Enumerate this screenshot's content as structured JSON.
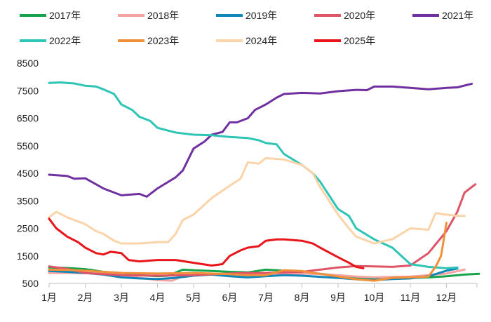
{
  "chart_data": {
    "type": "line",
    "title": "",
    "xlabel": "",
    "ylabel": "",
    "ylim": [
      500,
      8500
    ],
    "yticks": [
      500,
      1500,
      2500,
      3500,
      4500,
      5500,
      6500,
      7500,
      8500
    ],
    "ytick_labels": [
      "500",
      "1500",
      "2500",
      "3500",
      "4500",
      "5500",
      "6500",
      "7500",
      "8500"
    ],
    "xlim": [
      1,
      13
    ],
    "xticks": [
      1,
      2,
      3,
      4,
      5,
      6,
      7,
      8,
      9,
      10,
      11,
      12
    ],
    "xtick_labels": [
      "1月",
      "2月",
      "3月",
      "4月",
      "5月",
      "6月",
      "7月",
      "8月",
      "9月",
      "10月",
      "11月",
      "12月"
    ],
    "grid": false,
    "legend_position": "top",
    "series": [
      {
        "name": "2017年",
        "color": "#16a34a",
        "points": [
          [
            1.0,
            1080
          ],
          [
            1.5,
            1060
          ],
          [
            2.0,
            1020
          ],
          [
            2.5,
            920
          ],
          [
            3.0,
            880
          ],
          [
            3.5,
            800
          ],
          [
            4.0,
            760
          ],
          [
            4.3,
            780
          ],
          [
            4.7,
            1000
          ],
          [
            5.0,
            980
          ],
          [
            5.5,
            950
          ],
          [
            6.0,
            920
          ],
          [
            6.5,
            900
          ],
          [
            7.0,
            1000
          ],
          [
            7.5,
            960
          ],
          [
            8.0,
            900
          ],
          [
            8.5,
            850
          ],
          [
            9.0,
            780
          ],
          [
            9.5,
            720
          ],
          [
            10.0,
            680
          ],
          [
            10.5,
            720
          ],
          [
            11.0,
            700
          ],
          [
            11.5,
            720
          ],
          [
            12.0,
            760
          ],
          [
            12.5,
            820
          ],
          [
            12.9,
            850
          ]
        ]
      },
      {
        "name": "2018年",
        "color": "#f4a3a3",
        "points": [
          [
            1.0,
            880
          ],
          [
            1.5,
            880
          ],
          [
            2.0,
            870
          ],
          [
            2.5,
            860
          ],
          [
            3.0,
            820
          ],
          [
            3.5,
            700
          ],
          [
            4.0,
            620
          ],
          [
            4.4,
            600
          ],
          [
            4.7,
            760
          ],
          [
            5.0,
            800
          ],
          [
            5.5,
            820
          ],
          [
            6.0,
            820
          ],
          [
            6.5,
            830
          ],
          [
            7.0,
            840
          ],
          [
            7.5,
            850
          ],
          [
            8.0,
            860
          ],
          [
            8.5,
            840
          ],
          [
            9.0,
            800
          ],
          [
            9.5,
            750
          ],
          [
            10.0,
            720
          ],
          [
            10.5,
            740
          ],
          [
            11.0,
            750
          ],
          [
            11.5,
            800
          ],
          [
            12.0,
            860
          ],
          [
            12.5,
            1000
          ]
        ]
      },
      {
        "name": "2019年",
        "color": "#0e86b8",
        "points": [
          [
            1.0,
            950
          ],
          [
            1.5,
            920
          ],
          [
            2.0,
            880
          ],
          [
            2.5,
            820
          ],
          [
            3.0,
            720
          ],
          [
            3.5,
            680
          ],
          [
            4.0,
            660
          ],
          [
            4.5,
            700
          ],
          [
            5.0,
            780
          ],
          [
            5.5,
            820
          ],
          [
            6.0,
            760
          ],
          [
            6.5,
            720
          ],
          [
            7.0,
            760
          ],
          [
            7.5,
            800
          ],
          [
            8.0,
            780
          ],
          [
            8.5,
            740
          ],
          [
            9.0,
            700
          ],
          [
            9.5,
            650
          ],
          [
            10.0,
            620
          ],
          [
            10.5,
            660
          ],
          [
            11.0,
            680
          ],
          [
            11.5,
            760
          ],
          [
            12.0,
            960
          ],
          [
            12.3,
            1040
          ]
        ]
      },
      {
        "name": "2020年",
        "color": "#e05468",
        "points": [
          [
            1.0,
            1120
          ],
          [
            1.5,
            1030
          ],
          [
            2.0,
            880
          ],
          [
            2.5,
            840
          ],
          [
            3.0,
            800
          ],
          [
            3.5,
            790
          ],
          [
            4.0,
            780
          ],
          [
            4.5,
            790
          ],
          [
            5.0,
            800
          ],
          [
            5.5,
            830
          ],
          [
            6.0,
            860
          ],
          [
            6.5,
            880
          ],
          [
            7.0,
            880
          ],
          [
            7.5,
            900
          ],
          [
            8.0,
            920
          ],
          [
            8.5,
            1000
          ],
          [
            9.0,
            1080
          ],
          [
            9.5,
            1130
          ],
          [
            10.0,
            1120
          ],
          [
            10.5,
            1100
          ],
          [
            11.0,
            1150
          ],
          [
            11.5,
            1600
          ],
          [
            12.0,
            2400
          ],
          [
            12.3,
            3100
          ],
          [
            12.5,
            3800
          ],
          [
            12.8,
            4100
          ]
        ]
      },
      {
        "name": "2021年",
        "color": "#7030a0",
        "points": [
          [
            1.0,
            4450
          ],
          [
            1.5,
            4400
          ],
          [
            1.7,
            4300
          ],
          [
            2.0,
            4320
          ],
          [
            2.3,
            4100
          ],
          [
            2.5,
            3950
          ],
          [
            3.0,
            3700
          ],
          [
            3.5,
            3750
          ],
          [
            3.7,
            3650
          ],
          [
            4.0,
            3950
          ],
          [
            4.5,
            4350
          ],
          [
            4.7,
            4600
          ],
          [
            5.0,
            5400
          ],
          [
            5.3,
            5650
          ],
          [
            5.5,
            5900
          ],
          [
            5.8,
            6000
          ],
          [
            6.0,
            6350
          ],
          [
            6.2,
            6350
          ],
          [
            6.5,
            6500
          ],
          [
            6.7,
            6800
          ],
          [
            7.0,
            7000
          ],
          [
            7.3,
            7250
          ],
          [
            7.5,
            7380
          ],
          [
            8.0,
            7420
          ],
          [
            8.5,
            7400
          ],
          [
            9.0,
            7480
          ],
          [
            9.5,
            7530
          ],
          [
            9.8,
            7520
          ],
          [
            10.0,
            7650
          ],
          [
            10.5,
            7650
          ],
          [
            11.0,
            7600
          ],
          [
            11.5,
            7550
          ],
          [
            12.0,
            7600
          ],
          [
            12.3,
            7620
          ],
          [
            12.7,
            7750
          ]
        ]
      },
      {
        "name": "2022年",
        "color": "#2ec4b6",
        "points": [
          [
            1.0,
            7780
          ],
          [
            1.3,
            7800
          ],
          [
            1.7,
            7760
          ],
          [
            2.0,
            7680
          ],
          [
            2.3,
            7650
          ],
          [
            2.5,
            7550
          ],
          [
            2.8,
            7380
          ],
          [
            3.0,
            7000
          ],
          [
            3.3,
            6800
          ],
          [
            3.5,
            6550
          ],
          [
            3.8,
            6400
          ],
          [
            4.0,
            6150
          ],
          [
            4.5,
            5980
          ],
          [
            5.0,
            5900
          ],
          [
            5.5,
            5880
          ],
          [
            6.0,
            5820
          ],
          [
            6.5,
            5780
          ],
          [
            6.8,
            5700
          ],
          [
            7.0,
            5600
          ],
          [
            7.3,
            5550
          ],
          [
            7.5,
            5200
          ],
          [
            8.0,
            4800
          ],
          [
            8.3,
            4500
          ],
          [
            8.5,
            4200
          ],
          [
            9.0,
            3200
          ],
          [
            9.3,
            2950
          ],
          [
            9.5,
            2500
          ],
          [
            10.0,
            2100
          ],
          [
            10.5,
            1800
          ],
          [
            11.0,
            1200
          ],
          [
            11.5,
            1100
          ],
          [
            12.0,
            1050
          ],
          [
            12.3,
            1080
          ]
        ]
      },
      {
        "name": "2023年",
        "color": "#f0913a",
        "points": [
          [
            1.0,
            1000
          ],
          [
            1.5,
            990
          ],
          [
            2.0,
            960
          ],
          [
            2.5,
            920
          ],
          [
            3.0,
            880
          ],
          [
            3.5,
            870
          ],
          [
            4.0,
            860
          ],
          [
            4.5,
            870
          ],
          [
            5.0,
            880
          ],
          [
            5.5,
            860
          ],
          [
            6.0,
            840
          ],
          [
            6.5,
            800
          ],
          [
            7.0,
            800
          ],
          [
            7.5,
            980
          ],
          [
            8.0,
            950
          ],
          [
            8.5,
            850
          ],
          [
            9.0,
            750
          ],
          [
            9.5,
            650
          ],
          [
            10.0,
            600
          ],
          [
            10.5,
            700
          ],
          [
            11.0,
            720
          ],
          [
            11.5,
            750
          ],
          [
            11.7,
            1100
          ],
          [
            11.85,
            1500
          ],
          [
            12.0,
            2700
          ]
        ]
      },
      {
        "name": "2024年",
        "color": "#fbd3a8",
        "points": [
          [
            1.0,
            2900
          ],
          [
            1.2,
            3100
          ],
          [
            1.5,
            2900
          ],
          [
            1.8,
            2750
          ],
          [
            2.0,
            2650
          ],
          [
            2.3,
            2400
          ],
          [
            2.5,
            2300
          ],
          [
            2.8,
            2050
          ],
          [
            3.0,
            1950
          ],
          [
            3.5,
            1950
          ],
          [
            4.0,
            2000
          ],
          [
            4.3,
            2000
          ],
          [
            4.5,
            2300
          ],
          [
            4.7,
            2800
          ],
          [
            5.0,
            3000
          ],
          [
            5.5,
            3600
          ],
          [
            6.0,
            4050
          ],
          [
            6.3,
            4300
          ],
          [
            6.5,
            4900
          ],
          [
            6.8,
            4850
          ],
          [
            7.0,
            5050
          ],
          [
            7.5,
            5000
          ],
          [
            8.0,
            4800
          ],
          [
            8.3,
            4500
          ],
          [
            8.5,
            4000
          ],
          [
            9.0,
            3000
          ],
          [
            9.3,
            2500
          ],
          [
            9.5,
            2200
          ],
          [
            10.0,
            1950
          ],
          [
            10.3,
            2050
          ],
          [
            10.5,
            2100
          ],
          [
            11.0,
            2500
          ],
          [
            11.5,
            2450
          ],
          [
            11.7,
            3050
          ],
          [
            12.0,
            3000
          ],
          [
            12.3,
            2950
          ],
          [
            12.5,
            2950
          ]
        ]
      },
      {
        "name": "2025年",
        "color": "#e8151b",
        "points": [
          [
            1.0,
            2850
          ],
          [
            1.2,
            2500
          ],
          [
            1.5,
            2200
          ],
          [
            1.8,
            2000
          ],
          [
            2.0,
            1800
          ],
          [
            2.3,
            1600
          ],
          [
            2.5,
            1550
          ],
          [
            2.7,
            1650
          ],
          [
            3.0,
            1600
          ],
          [
            3.2,
            1350
          ],
          [
            3.5,
            1300
          ],
          [
            4.0,
            1350
          ],
          [
            4.5,
            1350
          ],
          [
            5.0,
            1250
          ],
          [
            5.5,
            1150
          ],
          [
            5.8,
            1200
          ],
          [
            6.0,
            1500
          ],
          [
            6.3,
            1700
          ],
          [
            6.5,
            1800
          ],
          [
            6.8,
            1850
          ],
          [
            7.0,
            2050
          ],
          [
            7.3,
            2100
          ],
          [
            7.5,
            2100
          ],
          [
            8.0,
            2050
          ],
          [
            8.3,
            1950
          ],
          [
            8.5,
            1800
          ],
          [
            9.0,
            1450
          ],
          [
            9.3,
            1250
          ],
          [
            9.5,
            1100
          ],
          [
            9.7,
            1050
          ]
        ]
      }
    ]
  }
}
